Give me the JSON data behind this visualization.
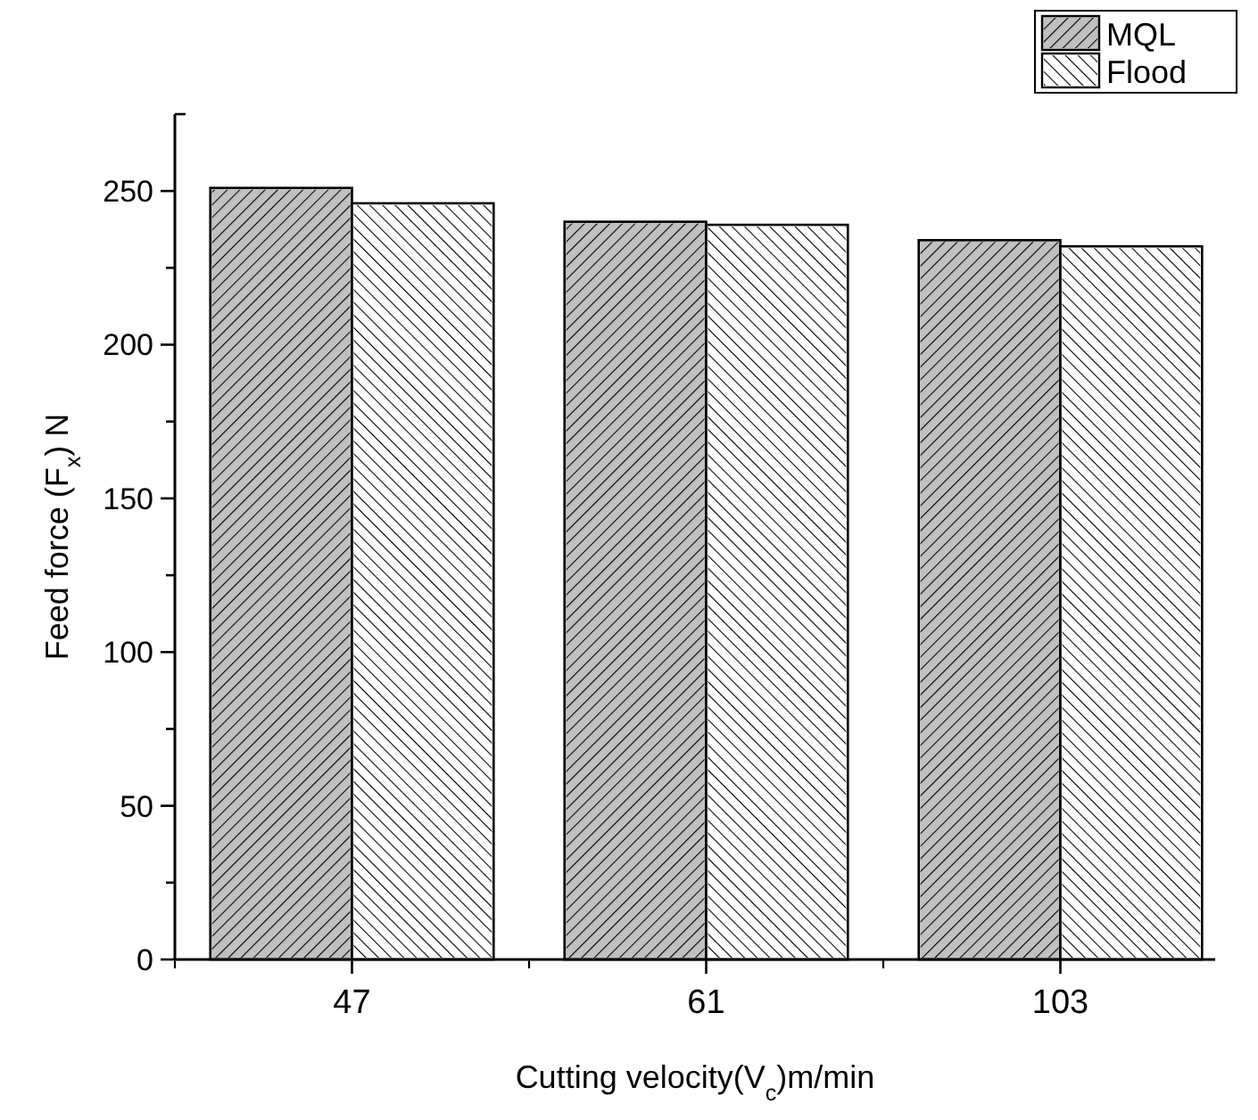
{
  "chart_data": {
    "type": "bar",
    "xlabel": "Cutting velocity(V$_{c}$)m/min",
    "ylabel": "Feed force (F$_{x}$) N",
    "categories": [
      "47",
      "61",
      "103"
    ],
    "series": [
      {
        "name": "MQL",
        "color": "#c0c0c0",
        "values": [
          251,
          240,
          234
        ]
      },
      {
        "name": "Flood",
        "color": "#ffffff",
        "values": [
          246,
          239,
          232
        ]
      }
    ],
    "ylim": [
      0,
      275
    ],
    "yticks": [
      0,
      {
        "value": 25,
        "label": null
      },
      50,
      {
        "value": 75,
        "label": null
      },
      100,
      {
        "value": 125,
        "label": null
      },
      150,
      {
        "value": 175,
        "label": null
      },
      200,
      {
        "value": 225,
        "label": null
      },
      250
    ],
    "grid": false,
    "legend": "top right"
  }
}
